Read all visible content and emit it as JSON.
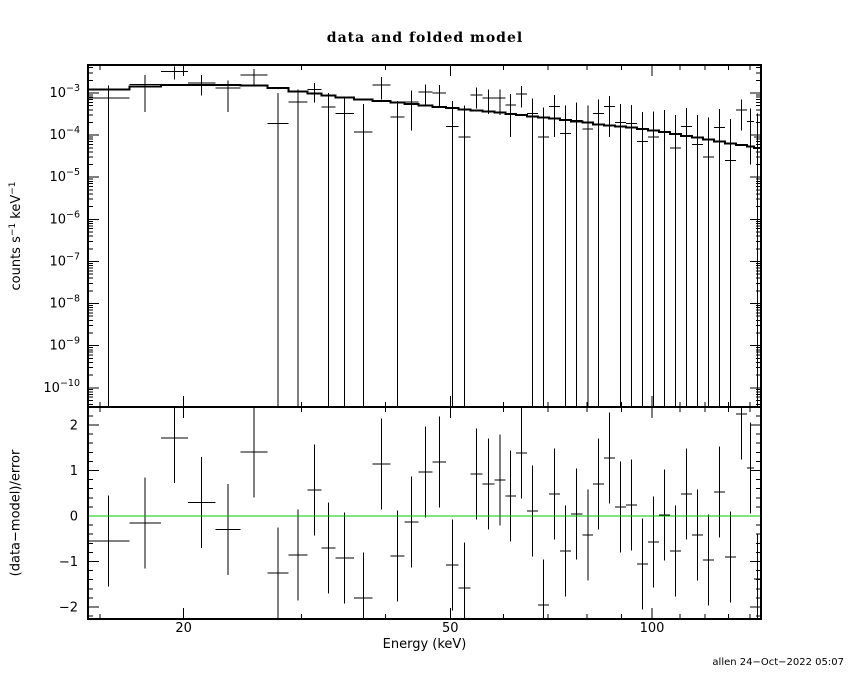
{
  "title": "data and folded model",
  "footer": "allen 24−Oct−2022 05:07",
  "labels": {
    "ylabel_top_pre": "counts s",
    "ylabel_top_sup1": "−1",
    "ylabel_top_mid": " keV",
    "ylabel_top_sup2": "−1",
    "ylabel_bottom": "(data−model)/error",
    "xlabel": "Energy (keV)"
  },
  "colors": {
    "foreground": "#000000",
    "background": "#ffffff",
    "zero_line": "#00c800"
  },
  "chart_data": {
    "type": "scatter",
    "title": "data and folded model",
    "xlabel": "Energy (keV)",
    "xscale": "log",
    "xlim": [
      14.4,
      145.4
    ],
    "xticks": {
      "major": [
        20,
        50,
        100
      ],
      "minor": [
        15,
        30,
        40,
        60,
        70,
        80,
        90,
        110,
        120,
        130,
        140
      ]
    },
    "panels": [
      {
        "name": "spectrum",
        "ylabel": "counts s−1 keV−1",
        "yscale": "log",
        "ylim": [
          3.5e-11,
          0.00462
        ],
        "ytick_exponents": [
          -3,
          -4,
          -5,
          -6,
          -7,
          -8,
          -9,
          -10
        ]
      },
      {
        "name": "residuals",
        "ylabel": "(data−model)/error",
        "yscale": "linear",
        "ylim": [
          -2.264,
          2.396
        ],
        "yticks": [
          2,
          1,
          0,
          -1,
          -2
        ],
        "minor_step": 0.2,
        "error_bar": 1.0,
        "zero_line": 0
      }
    ],
    "columns": [
      "e_lo_keV",
      "e_hi_keV",
      "rate",
      "err_hi",
      "err_lo_0_means_clipped_to_bottom",
      "model",
      "residual"
    ],
    "bins": [
      [
        14.4,
        16.6,
        0.00076,
        0.0015,
        0,
        0.00121,
        -0.55
      ],
      [
        16.6,
        18.5,
        0.0016,
        0.0027,
        0.00035,
        0.00142,
        -0.15
      ],
      [
        18.5,
        20.3,
        0.0032,
        0.0043,
        0.0021,
        0.00153,
        1.72
      ],
      [
        20.3,
        22.3,
        0.00175,
        0.0027,
        0.00088,
        0.00155,
        0.3
      ],
      [
        22.3,
        24.3,
        0.0013,
        0.002,
        0.00035,
        0.00155,
        -0.3
      ],
      [
        24.3,
        26.7,
        0.0027,
        0.0037,
        0.0016,
        0.0015,
        1.41
      ],
      [
        26.7,
        28.7,
        0.00019,
        0.001,
        0,
        0.0013,
        -1.25
      ],
      [
        28.7,
        30.6,
        0.00061,
        0.0012,
        0,
        0.00108,
        -0.86
      ],
      [
        30.6,
        32.1,
        0.0012,
        0.00175,
        0.0006,
        0.00096,
        0.57
      ],
      [
        32.1,
        33.7,
        0.00046,
        0.001,
        0,
        0.00088,
        -0.7
      ],
      [
        33.7,
        35.9,
        0.00033,
        0.00075,
        0,
        0.00079,
        -0.92
      ],
      [
        35.9,
        38.3,
        0.00012,
        0.00055,
        0,
        0.0007,
        -1.8
      ],
      [
        38.3,
        40.7,
        0.00155,
        0.0024,
        0.0007,
        0.00064,
        1.14
      ],
      [
        40.7,
        42.7,
        0.00027,
        0.00065,
        0,
        0.00059,
        -0.88
      ],
      [
        42.7,
        44.8,
        0.00061,
        0.00115,
        0.00013,
        0.00055,
        -0.13
      ],
      [
        44.8,
        47.0,
        0.00105,
        0.0016,
        0.0005,
        0.00051,
        0.97
      ],
      [
        47.0,
        49.3,
        0.001,
        0.00155,
        0.00046,
        0.00047,
        1.19
      ],
      [
        49.3,
        51.4,
        0.00016,
        0.00065,
        0,
        0.00044,
        -1.08
      ],
      [
        51.4,
        53.6,
        9e-05,
        0.0005,
        0,
        0.00041,
        -1.58
      ],
      [
        53.6,
        55.8,
        0.00089,
        0.00135,
        0.00043,
        0.00038,
        0.92
      ],
      [
        55.8,
        58.2,
        0.00076,
        0.0012,
        0.00032,
        0.00036,
        0.7
      ],
      [
        58.2,
        60.4,
        0.00076,
        0.0012,
        0.0003,
        0.00034,
        0.79
      ],
      [
        60.4,
        62.7,
        0.00052,
        0.00095,
        9e-05,
        0.00032,
        0.44
      ],
      [
        62.7,
        65.1,
        0.00095,
        0.00145,
        0.00045,
        0.0003,
        1.38
      ],
      [
        65.1,
        67.6,
        0.00033,
        0.00075,
        0,
        0.00028,
        0.11
      ],
      [
        67.6,
        70.2,
        9e-05,
        0.00045,
        0,
        0.00026,
        -1.96
      ],
      [
        70.2,
        72.9,
        0.00048,
        0.0009,
        9e-05,
        0.00025,
        0.48
      ],
      [
        72.9,
        75.7,
        0.00011,
        0.0005,
        0,
        0.00023,
        -0.77
      ],
      [
        75.7,
        78.7,
        0.00022,
        0.0006,
        0,
        0.00021,
        0.04
      ],
      [
        78.7,
        81.7,
        0.00014,
        0.0005,
        0,
        0.0002,
        -0.42
      ],
      [
        81.7,
        84.8,
        0.00033,
        0.0007,
        0,
        0.00018,
        0.7
      ],
      [
        84.8,
        88.1,
        0.00048,
        0.00086,
        9e-05,
        0.00017,
        1.27
      ],
      [
        88.1,
        91.5,
        0.0002,
        0.00055,
        0,
        0.00016,
        0.2
      ],
      [
        91.5,
        95.0,
        0.00019,
        0.00052,
        0,
        0.00015,
        0.24
      ],
      [
        95.0,
        98.7,
        7e-05,
        0.00035,
        0,
        0.00014,
        -1.05
      ],
      [
        98.7,
        102.4,
        9e-05,
        0.00036,
        0,
        0.00013,
        -0.57
      ],
      [
        102.4,
        106.4,
        0.00012,
        0.0004,
        0,
        0.00012,
        0.02
      ],
      [
        106.4,
        110.5,
        5e-05,
        0.0003,
        0,
        0.000105,
        -0.77
      ],
      [
        110.5,
        114.7,
        0.00016,
        0.00044,
        0,
        9.5e-05,
        0.48
      ],
      [
        114.7,
        119.1,
        6e-05,
        0.0003,
        0,
        8.7e-05,
        -0.42
      ],
      [
        119.1,
        123.7,
        3e-05,
        0.00026,
        0,
        7.9e-05,
        -0.97
      ],
      [
        123.7,
        128.5,
        0.00015,
        0.00042,
        0,
        7.1e-05,
        0.53
      ],
      [
        128.5,
        133.4,
        2.5e-05,
        0.00024,
        0,
        6.4e-05,
        -0.9
      ],
      [
        133.4,
        138.5,
        0.0004,
        0.0007,
        0.00013,
        5.8e-05,
        2.24
      ],
      [
        138.5,
        141.9,
        0.00021,
        0.00043,
        2e-05,
        5.3e-05,
        1.05
      ],
      [
        141.9,
        145.4,
        9e-05,
        0.00033,
        0,
        4.9e-05,
        -1.38
      ]
    ]
  }
}
